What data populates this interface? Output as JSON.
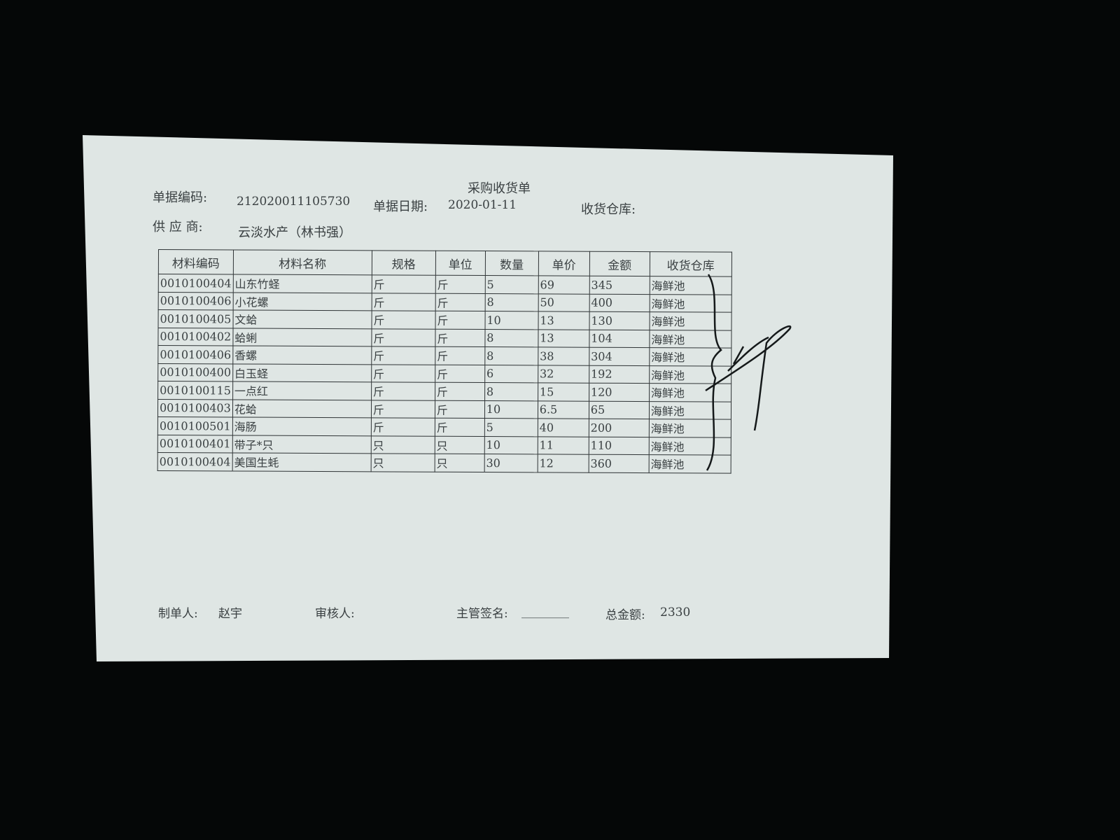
{
  "document": {
    "title": "采购收货单",
    "doc_no_label": "单据编码:",
    "doc_no": "212020011105730",
    "doc_date_label": "单据日期:",
    "doc_date": "2020-01-11",
    "warehouse_label": "收货仓库:",
    "supplier_label": "供 应 商:",
    "supplier": "云淡水产（林书强）"
  },
  "table": {
    "headers": [
      "材料编码",
      "材料名称",
      "规格",
      "单位",
      "数量",
      "单价",
      "金额",
      "收货仓库"
    ],
    "rows": [
      [
        "0010100404",
        "山东竹蛏",
        "斤",
        "斤",
        "5",
        "69",
        "345",
        "海鲜池"
      ],
      [
        "0010100406",
        "小花螺",
        "斤",
        "斤",
        "8",
        "50",
        "400",
        "海鲜池"
      ],
      [
        "0010100405",
        "文蛤",
        "斤",
        "斤",
        "10",
        "13",
        "130",
        "海鲜池"
      ],
      [
        "0010100402",
        "蛤蜊",
        "斤",
        "斤",
        "8",
        "13",
        "104",
        "海鲜池"
      ],
      [
        "0010100406",
        "香螺",
        "斤",
        "斤",
        "8",
        "38",
        "304",
        "海鲜池"
      ],
      [
        "0010100400",
        "白玉蛏",
        "斤",
        "斤",
        "6",
        "32",
        "192",
        "海鲜池"
      ],
      [
        "0010100115",
        "一点红",
        "斤",
        "斤",
        "8",
        "15",
        "120",
        "海鲜池"
      ],
      [
        "0010100403",
        "花蛤",
        "斤",
        "斤",
        "10",
        "6.5",
        "65",
        "海鲜池"
      ],
      [
        "0010100501",
        "海肠",
        "斤",
        "斤",
        "5",
        "40",
        "200",
        "海鲜池"
      ],
      [
        "0010100401",
        "带子*只",
        "只",
        "只",
        "10",
        "11",
        "110",
        "海鲜池"
      ],
      [
        "0010100404",
        "美国生蚝",
        "只",
        "只",
        "30",
        "12",
        "360",
        "海鲜池"
      ]
    ]
  },
  "footer": {
    "maker_label": "制单人:",
    "maker": "赵宇",
    "reviewer_label": "审核人:",
    "supervisor_label": "主管签名:",
    "supervisor_blank": "________",
    "total_label": "总金额:",
    "total": "2330"
  }
}
